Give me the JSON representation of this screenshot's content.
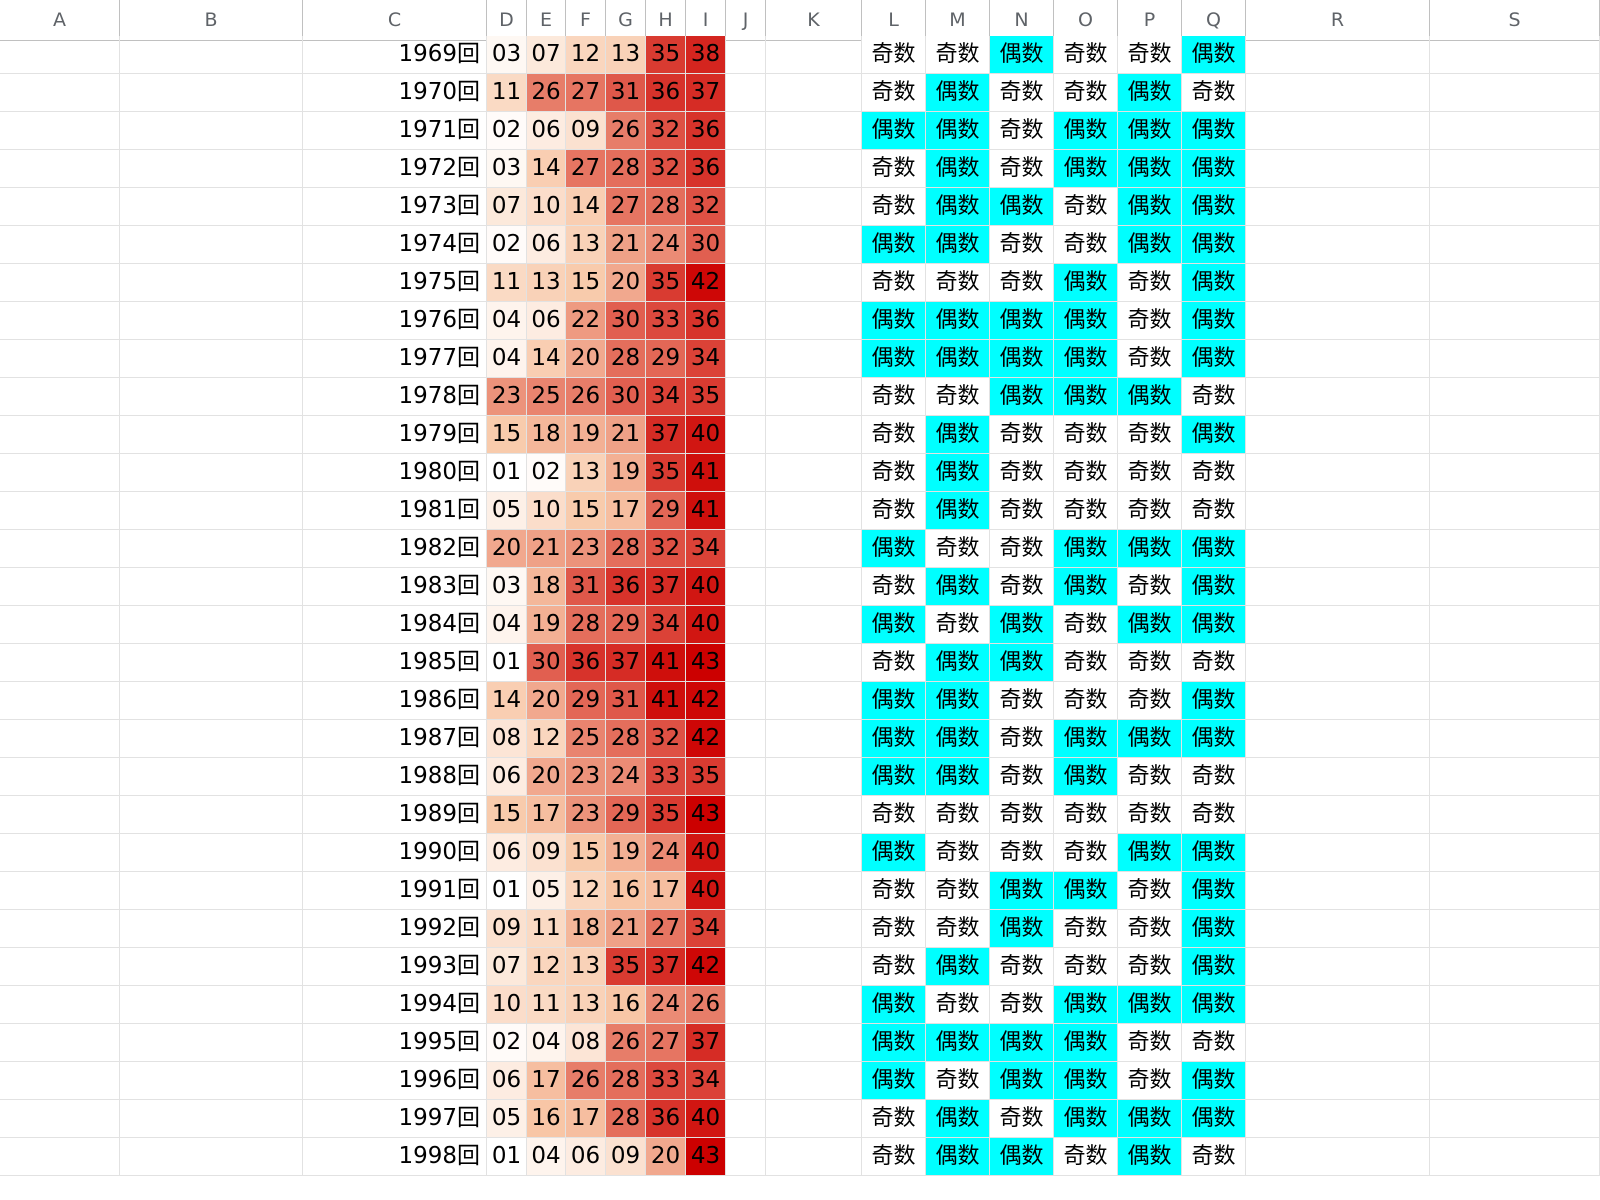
{
  "columns": [
    "A",
    "B",
    "C",
    "D",
    "E",
    "F",
    "G",
    "H",
    "I",
    "J",
    "K",
    "L",
    "M",
    "N",
    "O",
    "P",
    "Q",
    "R",
    "S"
  ],
  "rows": [
    {
      "round": "1969回",
      "nums": [
        "03",
        "07",
        "12",
        "13",
        "35",
        "38"
      ],
      "parity": [
        "奇数",
        "奇数",
        "偶数",
        "奇数",
        "奇数",
        "偶数"
      ]
    },
    {
      "round": "1970回",
      "nums": [
        "11",
        "26",
        "27",
        "31",
        "36",
        "37"
      ],
      "parity": [
        "奇数",
        "偶数",
        "奇数",
        "奇数",
        "偶数",
        "奇数"
      ]
    },
    {
      "round": "1971回",
      "nums": [
        "02",
        "06",
        "09",
        "26",
        "32",
        "36"
      ],
      "parity": [
        "偶数",
        "偶数",
        "奇数",
        "偶数",
        "偶数",
        "偶数"
      ]
    },
    {
      "round": "1972回",
      "nums": [
        "03",
        "14",
        "27",
        "28",
        "32",
        "36"
      ],
      "parity": [
        "奇数",
        "偶数",
        "奇数",
        "偶数",
        "偶数",
        "偶数"
      ]
    },
    {
      "round": "1973回",
      "nums": [
        "07",
        "10",
        "14",
        "27",
        "28",
        "32"
      ],
      "parity": [
        "奇数",
        "偶数",
        "偶数",
        "奇数",
        "偶数",
        "偶数"
      ]
    },
    {
      "round": "1974回",
      "nums": [
        "02",
        "06",
        "13",
        "21",
        "24",
        "30"
      ],
      "parity": [
        "偶数",
        "偶数",
        "奇数",
        "奇数",
        "偶数",
        "偶数"
      ]
    },
    {
      "round": "1975回",
      "nums": [
        "11",
        "13",
        "15",
        "20",
        "35",
        "42"
      ],
      "parity": [
        "奇数",
        "奇数",
        "奇数",
        "偶数",
        "奇数",
        "偶数"
      ]
    },
    {
      "round": "1976回",
      "nums": [
        "04",
        "06",
        "22",
        "30",
        "33",
        "36"
      ],
      "parity": [
        "偶数",
        "偶数",
        "偶数",
        "偶数",
        "奇数",
        "偶数"
      ]
    },
    {
      "round": "1977回",
      "nums": [
        "04",
        "14",
        "20",
        "28",
        "29",
        "34"
      ],
      "parity": [
        "偶数",
        "偶数",
        "偶数",
        "偶数",
        "奇数",
        "偶数"
      ]
    },
    {
      "round": "1978回",
      "nums": [
        "23",
        "25",
        "26",
        "30",
        "34",
        "35"
      ],
      "parity": [
        "奇数",
        "奇数",
        "偶数",
        "偶数",
        "偶数",
        "奇数"
      ]
    },
    {
      "round": "1979回",
      "nums": [
        "15",
        "18",
        "19",
        "21",
        "37",
        "40"
      ],
      "parity": [
        "奇数",
        "偶数",
        "奇数",
        "奇数",
        "奇数",
        "偶数"
      ]
    },
    {
      "round": "1980回",
      "nums": [
        "01",
        "02",
        "13",
        "19",
        "35",
        "41"
      ],
      "parity": [
        "奇数",
        "偶数",
        "奇数",
        "奇数",
        "奇数",
        "奇数"
      ]
    },
    {
      "round": "1981回",
      "nums": [
        "05",
        "10",
        "15",
        "17",
        "29",
        "41"
      ],
      "parity": [
        "奇数",
        "偶数",
        "奇数",
        "奇数",
        "奇数",
        "奇数"
      ]
    },
    {
      "round": "1982回",
      "nums": [
        "20",
        "21",
        "23",
        "28",
        "32",
        "34"
      ],
      "parity": [
        "偶数",
        "奇数",
        "奇数",
        "偶数",
        "偶数",
        "偶数"
      ]
    },
    {
      "round": "1983回",
      "nums": [
        "03",
        "18",
        "31",
        "36",
        "37",
        "40"
      ],
      "parity": [
        "奇数",
        "偶数",
        "奇数",
        "偶数",
        "奇数",
        "偶数"
      ]
    },
    {
      "round": "1984回",
      "nums": [
        "04",
        "19",
        "28",
        "29",
        "34",
        "40"
      ],
      "parity": [
        "偶数",
        "奇数",
        "偶数",
        "奇数",
        "偶数",
        "偶数"
      ]
    },
    {
      "round": "1985回",
      "nums": [
        "01",
        "30",
        "36",
        "37",
        "41",
        "43"
      ],
      "parity": [
        "奇数",
        "偶数",
        "偶数",
        "奇数",
        "奇数",
        "奇数"
      ]
    },
    {
      "round": "1986回",
      "nums": [
        "14",
        "20",
        "29",
        "31",
        "41",
        "42"
      ],
      "parity": [
        "偶数",
        "偶数",
        "奇数",
        "奇数",
        "奇数",
        "偶数"
      ]
    },
    {
      "round": "1987回",
      "nums": [
        "08",
        "12",
        "25",
        "28",
        "32",
        "42"
      ],
      "parity": [
        "偶数",
        "偶数",
        "奇数",
        "偶数",
        "偶数",
        "偶数"
      ]
    },
    {
      "round": "1988回",
      "nums": [
        "06",
        "20",
        "23",
        "24",
        "33",
        "35"
      ],
      "parity": [
        "偶数",
        "偶数",
        "奇数",
        "偶数",
        "奇数",
        "奇数"
      ]
    },
    {
      "round": "1989回",
      "nums": [
        "15",
        "17",
        "23",
        "29",
        "35",
        "43"
      ],
      "parity": [
        "奇数",
        "奇数",
        "奇数",
        "奇数",
        "奇数",
        "奇数"
      ]
    },
    {
      "round": "1990回",
      "nums": [
        "06",
        "09",
        "15",
        "19",
        "24",
        "40"
      ],
      "parity": [
        "偶数",
        "奇数",
        "奇数",
        "奇数",
        "偶数",
        "偶数"
      ]
    },
    {
      "round": "1991回",
      "nums": [
        "01",
        "05",
        "12",
        "16",
        "17",
        "40"
      ],
      "parity": [
        "奇数",
        "奇数",
        "偶数",
        "偶数",
        "奇数",
        "偶数"
      ]
    },
    {
      "round": "1992回",
      "nums": [
        "09",
        "11",
        "18",
        "21",
        "27",
        "34"
      ],
      "parity": [
        "奇数",
        "奇数",
        "偶数",
        "奇数",
        "奇数",
        "偶数"
      ]
    },
    {
      "round": "1993回",
      "nums": [
        "07",
        "12",
        "13",
        "35",
        "37",
        "42"
      ],
      "parity": [
        "奇数",
        "偶数",
        "奇数",
        "奇数",
        "奇数",
        "偶数"
      ]
    },
    {
      "round": "1994回",
      "nums": [
        "10",
        "11",
        "13",
        "16",
        "24",
        "26"
      ],
      "parity": [
        "偶数",
        "奇数",
        "奇数",
        "偶数",
        "偶数",
        "偶数"
      ]
    },
    {
      "round": "1995回",
      "nums": [
        "02",
        "04",
        "08",
        "26",
        "27",
        "37"
      ],
      "parity": [
        "偶数",
        "偶数",
        "偶数",
        "偶数",
        "奇数",
        "奇数"
      ]
    },
    {
      "round": "1996回",
      "nums": [
        "06",
        "17",
        "26",
        "28",
        "33",
        "34"
      ],
      "parity": [
        "偶数",
        "奇数",
        "偶数",
        "偶数",
        "奇数",
        "偶数"
      ]
    },
    {
      "round": "1997回",
      "nums": [
        "05",
        "16",
        "17",
        "28",
        "36",
        "40"
      ],
      "parity": [
        "奇数",
        "偶数",
        "奇数",
        "偶数",
        "偶数",
        "偶数"
      ]
    },
    {
      "round": "1998回",
      "nums": [
        "01",
        "04",
        "06",
        "09",
        "20",
        "43"
      ],
      "parity": [
        "奇数",
        "偶数",
        "偶数",
        "奇数",
        "偶数",
        "奇数"
      ]
    }
  ],
  "colors": {
    "even_fill": "#00ffff",
    "heat_low": "#ffffff",
    "heat_mid": "#f8c8a8",
    "heat_high": "#cc0000"
  }
}
